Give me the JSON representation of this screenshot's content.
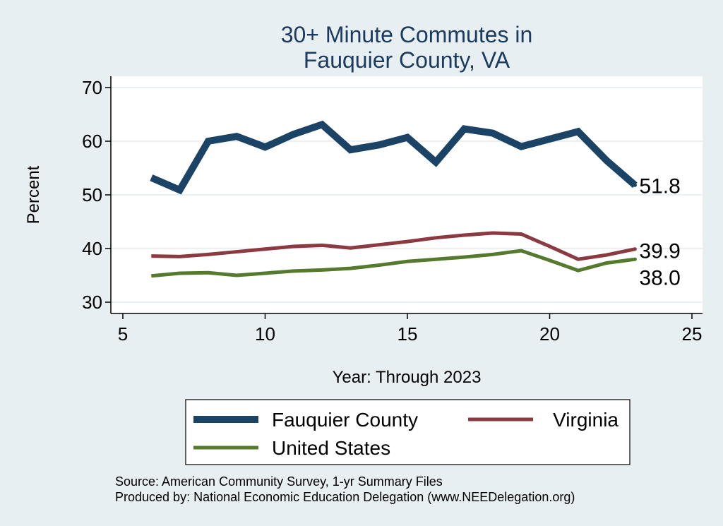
{
  "chart_data": {
    "type": "line",
    "title": [
      "30+ Minute Commutes in",
      "Fauquier County, VA"
    ],
    "xlabel": "Year: Through 2023",
    "ylabel": "Percent",
    "xlim": [
      5,
      25
    ],
    "ylim": [
      28.5,
      71
    ],
    "xticks": [
      5,
      10,
      15,
      20,
      25
    ],
    "yticks": [
      30,
      40,
      50,
      60,
      70
    ],
    "grid": true,
    "legend_position": "bottom",
    "colors": {
      "background": "#e8eff3",
      "plot_background": "#ffffff",
      "grid": "#e4ebef",
      "title": "#1a3a5e"
    },
    "series": [
      {
        "name": "Fauquier County",
        "color": "#1a4366",
        "weight": 10,
        "end_label": "51.8",
        "x": [
          6,
          7,
          8,
          9,
          10,
          11,
          12,
          13,
          14,
          15,
          16,
          17,
          18,
          19,
          20,
          21,
          22,
          23
        ],
        "values": [
          53.2,
          50.9,
          60.0,
          60.9,
          58.9,
          61.3,
          63.1,
          58.4,
          59.3,
          60.7,
          56.1,
          62.3,
          61.5,
          59.0,
          60.4,
          61.8,
          56.4,
          51.8
        ]
      },
      {
        "name": "Virginia",
        "color": "#8b3a42",
        "weight": 5,
        "end_label": "39.9",
        "x": [
          6,
          7,
          8,
          9,
          10,
          11,
          12,
          13,
          14,
          15,
          16,
          17,
          18,
          19,
          20,
          21,
          22,
          23
        ],
        "values": [
          38.6,
          38.5,
          38.9,
          39.4,
          39.9,
          40.4,
          40.6,
          40.1,
          40.7,
          41.3,
          42.0,
          42.5,
          42.9,
          42.7,
          40.4,
          38.0,
          38.8,
          39.9
        ]
      },
      {
        "name": "United States",
        "color": "#557a2e",
        "weight": 5,
        "end_label": "38.0",
        "x": [
          6,
          7,
          8,
          9,
          10,
          11,
          12,
          13,
          14,
          15,
          16,
          17,
          18,
          19,
          20,
          21,
          22,
          23
        ],
        "values": [
          34.9,
          35.4,
          35.5,
          35.0,
          35.4,
          35.8,
          36.0,
          36.3,
          36.9,
          37.6,
          38.0,
          38.4,
          38.9,
          39.6,
          37.8,
          35.9,
          37.3,
          38.0
        ]
      }
    ]
  },
  "notes": [
    "Source: American Community Survey, 1-yr Summary Files",
    "Produced by: National Economic Education Delegation (www.NEEDelegation.org)"
  ]
}
